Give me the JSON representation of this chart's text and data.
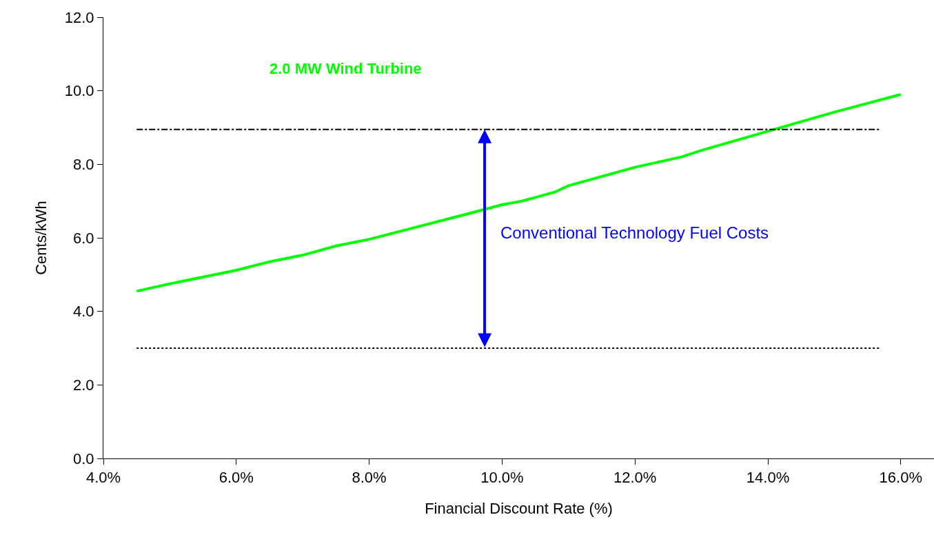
{
  "chart_data": {
    "type": "line",
    "xlabel": "Financial Discount Rate (%)",
    "ylabel": "Cents/kWh",
    "x": [
      4.5,
      5.0,
      6.0,
      6.5,
      7.0,
      7.5,
      8.0,
      9.5,
      10.0,
      10.3,
      10.5,
      10.8,
      11.0,
      12.0,
      12.7,
      13.0,
      14.0,
      15.0,
      16.0
    ],
    "series": [
      {
        "name": "2.0 MW Wind Turbine",
        "color": "#00ff00",
        "values": [
          4.55,
          4.75,
          5.12,
          5.35,
          5.53,
          5.78,
          5.96,
          6.66,
          6.9,
          7.0,
          7.1,
          7.25,
          7.42,
          7.92,
          8.2,
          8.38,
          8.9,
          9.42,
          9.9
        ]
      }
    ],
    "xlim": [
      4,
      16.5
    ],
    "xticks": [
      {
        "value": 4,
        "label": "4.0%"
      },
      {
        "value": 6,
        "label": "6.0%"
      },
      {
        "value": 8,
        "label": "8.0%"
      },
      {
        "value": 10,
        "label": "10.0%"
      },
      {
        "value": 12,
        "label": "12.0%"
      },
      {
        "value": 14,
        "label": "14.0%"
      },
      {
        "value": 16,
        "label": "16.0%"
      }
    ],
    "ylim": [
      0,
      12
    ],
    "yticks": [
      {
        "value": 0,
        "label": "0.0"
      },
      {
        "value": 2,
        "label": "2.0"
      },
      {
        "value": 4,
        "label": "4.0"
      },
      {
        "value": 6,
        "label": "6.0"
      },
      {
        "value": 8,
        "label": "8.0"
      },
      {
        "value": 10,
        "label": "10.0"
      },
      {
        "value": 12,
        "label": "12.0"
      }
    ],
    "ref_lines": [
      {
        "axis": "y",
        "value": 8.95,
        "color": "#000000",
        "line_style": "dashdot"
      },
      {
        "axis": "y",
        "value": 3.0,
        "color": "#000000",
        "line_style": "dotted"
      }
    ],
    "annotations": [
      "Conventional Technology Fuel Costs"
    ],
    "grid": false,
    "legend": false,
    "marker": "none",
    "line_style": "solid"
  }
}
